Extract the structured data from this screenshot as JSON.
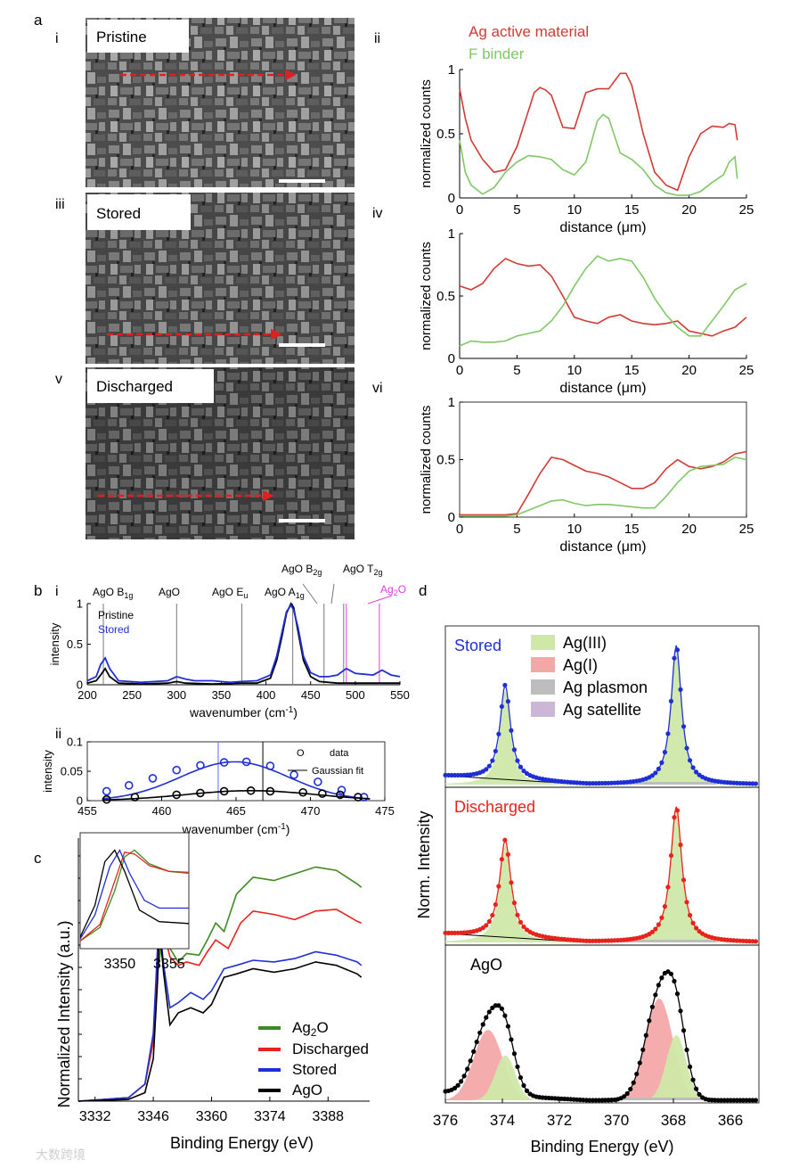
{
  "panel_labels": {
    "a": "a",
    "b": "b",
    "c": "c",
    "d": "d"
  },
  "sem": [
    {
      "roman": "i",
      "label": "Pristine"
    },
    {
      "roman": "iii",
      "label": "Stored"
    },
    {
      "roman": "v",
      "label": "Discharged"
    }
  ],
  "colors": {
    "ag": "#d23b34",
    "f": "#7fc865",
    "blue": "#1f2fd6",
    "red": "#e8231c",
    "green": "#3d8a1f",
    "black": "#000000",
    "magenta": "#e23ee6",
    "ag3": "#cfe8a8",
    "ag1": "#f3a8a8",
    "plasmon": "#bdbdbd",
    "satellite": "#cbb6d6"
  },
  "watermark": "大数跨境",
  "chart_data": [
    {
      "id": "a-ii",
      "roman": "ii",
      "type": "line",
      "legend": [
        "Ag active material",
        "F  binder"
      ],
      "xlabel": "distance (μm)",
      "ylabel": "normalized counts",
      "xlim": [
        0,
        25
      ],
      "ylim": [
        0,
        1
      ],
      "xticks": [
        0,
        5,
        10,
        15,
        20,
        25
      ],
      "yticks": [
        0,
        0.5,
        1
      ],
      "series": [
        {
          "name": "Ag active material",
          "x": [
            0,
            0.5,
            1,
            2,
            3,
            4,
            5,
            6,
            6.5,
            7,
            7.5,
            8,
            9,
            10,
            11,
            12,
            13,
            14,
            14.5,
            15,
            16,
            17,
            18,
            19,
            20,
            21,
            22,
            23,
            23.5,
            24,
            24.2
          ],
          "y": [
            0.85,
            0.62,
            0.45,
            0.3,
            0.2,
            0.22,
            0.4,
            0.68,
            0.82,
            0.86,
            0.84,
            0.8,
            0.55,
            0.54,
            0.82,
            0.85,
            0.85,
            0.97,
            0.97,
            0.88,
            0.5,
            0.2,
            0.1,
            0.06,
            0.32,
            0.5,
            0.56,
            0.55,
            0.58,
            0.57,
            0.45
          ]
        },
        {
          "name": "F  binder",
          "x": [
            0,
            0.5,
            1,
            2,
            3,
            4,
            5,
            6,
            7,
            8,
            9,
            10,
            11,
            12,
            12.5,
            13,
            14,
            15,
            16,
            17,
            18,
            19,
            20,
            21,
            22,
            23,
            23.5,
            24,
            24.2
          ],
          "y": [
            0.45,
            0.2,
            0.1,
            0.03,
            0.08,
            0.2,
            0.28,
            0.33,
            0.32,
            0.3,
            0.22,
            0.18,
            0.28,
            0.6,
            0.65,
            0.62,
            0.35,
            0.3,
            0.22,
            0.1,
            0.04,
            0.02,
            0.02,
            0.05,
            0.12,
            0.18,
            0.28,
            0.32,
            0.15
          ]
        }
      ]
    },
    {
      "id": "a-iv",
      "roman": "iv",
      "type": "line",
      "xlabel": "distance (μm)",
      "ylabel": "normalized counts",
      "xlim": [
        0,
        25
      ],
      "ylim": [
        0,
        1
      ],
      "xticks": [
        0,
        5,
        10,
        15,
        20,
        25
      ],
      "yticks": [
        0,
        0.5,
        1
      ],
      "series": [
        {
          "name": "Ag active material",
          "x": [
            0,
            1,
            2,
            3,
            4,
            5,
            6,
            7,
            8,
            9,
            10,
            11,
            12,
            13,
            14,
            15,
            16,
            17,
            18,
            19,
            20,
            21,
            22,
            23,
            24,
            25
          ],
          "y": [
            0.58,
            0.55,
            0.6,
            0.72,
            0.8,
            0.76,
            0.74,
            0.75,
            0.66,
            0.5,
            0.33,
            0.3,
            0.28,
            0.33,
            0.35,
            0.3,
            0.28,
            0.27,
            0.28,
            0.3,
            0.22,
            0.2,
            0.18,
            0.22,
            0.25,
            0.33
          ]
        },
        {
          "name": "F  binder",
          "x": [
            0,
            1,
            2,
            3,
            4,
            5,
            6,
            7,
            8,
            9,
            10,
            11,
            12,
            13,
            14,
            15,
            16,
            17,
            18,
            19,
            20,
            21,
            22,
            23,
            24,
            25
          ],
          "y": [
            0.1,
            0.14,
            0.13,
            0.13,
            0.14,
            0.18,
            0.2,
            0.22,
            0.3,
            0.42,
            0.58,
            0.72,
            0.82,
            0.78,
            0.8,
            0.78,
            0.65,
            0.48,
            0.35,
            0.25,
            0.18,
            0.18,
            0.3,
            0.42,
            0.55,
            0.6
          ]
        }
      ]
    },
    {
      "id": "a-vi",
      "roman": "vi",
      "type": "line",
      "xlabel": "distance (μm)",
      "ylabel": "normalized counts",
      "xlim": [
        0,
        25
      ],
      "ylim": [
        0,
        1
      ],
      "xticks": [
        0,
        5,
        10,
        15,
        20,
        25
      ],
      "yticks": [
        0,
        0.5,
        1
      ],
      "series": [
        {
          "name": "Ag active material",
          "x": [
            0,
            2,
            4,
            5,
            6,
            7,
            8,
            9,
            10,
            11,
            12,
            13,
            14,
            15,
            16,
            17,
            18,
            19,
            20,
            21,
            22,
            23,
            24,
            25
          ],
          "y": [
            0.02,
            0.02,
            0.02,
            0.03,
            0.2,
            0.38,
            0.52,
            0.5,
            0.45,
            0.4,
            0.38,
            0.35,
            0.3,
            0.25,
            0.25,
            0.3,
            0.42,
            0.5,
            0.44,
            0.42,
            0.44,
            0.48,
            0.55,
            0.57
          ]
        },
        {
          "name": "F  binder",
          "x": [
            0,
            2,
            4,
            5,
            6,
            7,
            8,
            9,
            10,
            11,
            12,
            13,
            14,
            15,
            16,
            17,
            18,
            19,
            20,
            21,
            22,
            23,
            24,
            25
          ],
          "y": [
            0.01,
            0.01,
            0.01,
            0.02,
            0.06,
            0.1,
            0.14,
            0.15,
            0.12,
            0.1,
            0.11,
            0.11,
            0.1,
            0.09,
            0.08,
            0.08,
            0.18,
            0.3,
            0.4,
            0.44,
            0.45,
            0.46,
            0.52,
            0.5
          ]
        }
      ]
    },
    {
      "id": "b-i",
      "roman": "i",
      "type": "line",
      "xlabel": "wavenumber (cm",
      "xlabel_sup": "-1",
      "xlabel_end": ")",
      "ylabel": "intensity",
      "xlim": [
        200,
        550
      ],
      "ylim": [
        0,
        1
      ],
      "xticks": [
        200,
        250,
        300,
        350,
        400,
        450,
        500,
        550
      ],
      "yticks": [
        0,
        0.5,
        1
      ],
      "legend": [
        "Pristine",
        "Stored"
      ],
      "bands": [
        {
          "label": "AgO B",
          "sub": "1g",
          "x": 218,
          "color": "#000000"
        },
        {
          "label": "AgO",
          "sub": "",
          "x": 300,
          "color": "#000000"
        },
        {
          "label": "AgO E",
          "sub": "u",
          "x": 373,
          "color": "#000000"
        },
        {
          "label": "AgO A",
          "sub": "1g",
          "x": 430,
          "color": "#000000"
        },
        {
          "label": "AgO B",
          "sub": "2g",
          "x": 465,
          "color": "#000000"
        },
        {
          "label": "AgO T",
          "sub": "2g",
          "x": 487,
          "color": "#000000"
        },
        {
          "label": "Ag",
          "sub": "2",
          "label_end": "O",
          "x": 490,
          "x2": 527,
          "color": "#e23ee6"
        }
      ],
      "series": [
        {
          "name": "Pristine",
          "x": [
            200,
            210,
            215,
            220,
            225,
            235,
            260,
            290,
            300,
            310,
            340,
            372,
            390,
            405,
            412,
            418,
            423,
            428,
            431,
            436,
            442,
            450,
            460,
            480,
            490,
            500,
            520,
            540,
            550
          ],
          "y": [
            0.02,
            0.05,
            0.12,
            0.2,
            0.1,
            0.02,
            0.01,
            0.02,
            0.04,
            0.02,
            0.01,
            0.02,
            0.02,
            0.08,
            0.3,
            0.6,
            0.88,
            1.0,
            0.95,
            0.65,
            0.3,
            0.1,
            0.04,
            0.02,
            0.02,
            0.02,
            0.02,
            0.02,
            0.02
          ]
        },
        {
          "name": "Stored",
          "x": [
            200,
            210,
            215,
            220,
            225,
            235,
            260,
            290,
            300,
            310,
            320,
            340,
            360,
            372,
            390,
            405,
            412,
            418,
            423,
            428,
            431,
            436,
            442,
            450,
            460,
            470,
            480,
            490,
            500,
            510,
            520,
            530,
            540,
            550
          ],
          "y": [
            0.05,
            0.1,
            0.25,
            0.33,
            0.2,
            0.05,
            0.03,
            0.05,
            0.1,
            0.07,
            0.05,
            0.05,
            0.03,
            0.04,
            0.05,
            0.12,
            0.35,
            0.65,
            0.9,
            0.98,
            0.92,
            0.7,
            0.35,
            0.15,
            0.1,
            0.1,
            0.12,
            0.2,
            0.14,
            0.13,
            0.12,
            0.18,
            0.12,
            0.1
          ]
        }
      ]
    },
    {
      "id": "b-ii",
      "roman": "ii",
      "type": "scatter",
      "xlabel": "wavenumber (cm",
      "xlabel_sup": "-1",
      "xlabel_end": ")",
      "ylabel": "intensity",
      "xlim": [
        455,
        475
      ],
      "ylim": [
        0,
        0.1
      ],
      "xticks": [
        455,
        460,
        465,
        470,
        475
      ],
      "yticks": [
        0,
        0.05,
        0.1
      ],
      "ytick_labels": [
        "0",
        "0.05",
        "0.1"
      ],
      "legend": [
        "data",
        "Gaussian fit"
      ],
      "legend_marker": "O",
      "vlines": [
        {
          "x": 463.8,
          "color": "#5b6ef0"
        },
        {
          "x": 466.8,
          "color": "#000000"
        }
      ],
      "series": [
        {
          "name": "Stored",
          "x": [
            456.3,
            457.8,
            459.4,
            461,
            462.6,
            464.2,
            465.7,
            467.3,
            468.9,
            470.5,
            472.1,
            473.6
          ],
          "y": [
            0.016,
            0.026,
            0.038,
            0.052,
            0.06,
            0.065,
            0.066,
            0.059,
            0.044,
            0.032,
            0.018,
            0.006
          ],
          "fit_center": 464.9,
          "fit_amp": 0.066,
          "fit_sigma": 5.4
        },
        {
          "name": "Pristine",
          "x": [
            456.3,
            458.2,
            461,
            462.6,
            464.2,
            466,
            467.3,
            469.5,
            470.8,
            472,
            473.2
          ],
          "y": [
            0.002,
            0.006,
            0.01,
            0.013,
            0.016,
            0.017,
            0.016,
            0.014,
            0.012,
            0.01,
            0.006
          ],
          "fit_center": 466,
          "fit_amp": 0.017,
          "fit_sigma": 6.5
        }
      ]
    },
    {
      "id": "c",
      "type": "line",
      "xlabel": "Binding Energy (eV)",
      "ylabel": "Normalized Intensity (a.u.)",
      "xlim": [
        3328,
        3398
      ],
      "ylim": [
        0,
        1.55
      ],
      "xticks": [
        3332,
        3346,
        3360,
        3374,
        3388
      ],
      "legend": [
        "Ag2O",
        "Discharged",
        "Stored",
        "AgO"
      ],
      "inset": {
        "xlim": [
          3346,
          3357
        ],
        "xticks": [
          3350,
          3355
        ]
      },
      "series": [
        {
          "name": "Ag2O",
          "x": [
            3328,
            3340,
            3344,
            3346,
            3347,
            3348.5,
            3350,
            3352,
            3354,
            3357,
            3359,
            3361,
            3363,
            3366,
            3370,
            3375,
            3380,
            3385,
            3390,
            3395,
            3396
          ],
          "y": [
            0.0,
            0.02,
            0.1,
            0.35,
            0.75,
            1.02,
            0.9,
            0.82,
            0.87,
            0.86,
            0.95,
            1.05,
            1.0,
            1.22,
            1.32,
            1.3,
            1.34,
            1.38,
            1.36,
            1.28,
            1.26
          ]
        },
        {
          "name": "Discharged",
          "x": [
            3328,
            3340,
            3344,
            3346,
            3347,
            3348,
            3349,
            3350,
            3352,
            3354,
            3357,
            3359,
            3361,
            3364,
            3367,
            3370,
            3375,
            3380,
            3385,
            3390,
            3395,
            3396
          ],
          "y": [
            0.0,
            0.02,
            0.1,
            0.35,
            0.8,
            1.02,
            0.95,
            0.85,
            0.8,
            0.82,
            0.8,
            0.88,
            0.95,
            0.9,
            1.05,
            1.12,
            1.1,
            1.07,
            1.12,
            1.13,
            1.06,
            1.05
          ]
        },
        {
          "name": "Stored",
          "x": [
            3328,
            3340,
            3344,
            3346,
            3347,
            3347.5,
            3348.5,
            3350,
            3352,
            3355,
            3358,
            3360,
            3363,
            3366,
            3370,
            3375,
            3380,
            3385,
            3390,
            3395,
            3396
          ],
          "y": [
            0.0,
            0.02,
            0.1,
            0.4,
            0.9,
            1.03,
            0.8,
            0.55,
            0.58,
            0.64,
            0.6,
            0.65,
            0.78,
            0.8,
            0.83,
            0.82,
            0.84,
            0.88,
            0.86,
            0.82,
            0.8
          ]
        },
        {
          "name": "AgO",
          "x": [
            3328,
            3340,
            3344,
            3346,
            3347,
            3347.5,
            3348.5,
            3350,
            3352,
            3355,
            3358,
            3360,
            3363,
            3366,
            3370,
            3375,
            3380,
            3385,
            3390,
            3395,
            3396
          ],
          "y": [
            0.0,
            0.01,
            0.05,
            0.25,
            0.7,
            1.02,
            0.75,
            0.45,
            0.52,
            0.55,
            0.52,
            0.57,
            0.73,
            0.75,
            0.78,
            0.76,
            0.78,
            0.82,
            0.8,
            0.75,
            0.73
          ]
        }
      ]
    },
    {
      "id": "d",
      "type": "xps",
      "xlabel": "Binding Energy (eV)",
      "ylabel": "Norm. Intensity",
      "xlim": [
        376,
        365
      ],
      "xticks": [
        376,
        374,
        372,
        370,
        368,
        366
      ],
      "legend": [
        "Ag(III)",
        "Ag(I)",
        "Ag plasmon",
        "Ag satellite"
      ],
      "panels": [
        {
          "name": "Stored",
          "color": "blue",
          "peaks": [
            {
              "c": 373.9,
              "h": 0.68,
              "w": 0.22,
              "cls": "ag3"
            },
            {
              "c": 367.9,
              "h": 1.0,
              "w": 0.22,
              "cls": "ag3"
            }
          ],
          "bg": 0.02
        },
        {
          "name": "Discharged",
          "color": "red",
          "peaks": [
            {
              "c": 373.9,
              "h": 0.72,
              "w": 0.24,
              "cls": "ag3"
            },
            {
              "c": 367.9,
              "h": 1.0,
              "w": 0.24,
              "cls": "ag3"
            }
          ],
          "bg": 0.02
        },
        {
          "name": "AgO",
          "color": "black",
          "peaks": [
            {
              "c": 374.5,
              "h": 0.52,
              "w": 0.5,
              "cls": "ag1"
            },
            {
              "c": 373.9,
              "h": 0.33,
              "w": 0.35,
              "cls": "ag3"
            },
            {
              "c": 368.5,
              "h": 0.75,
              "w": 0.48,
              "cls": "ag1"
            },
            {
              "c": 367.9,
              "h": 0.48,
              "w": 0.35,
              "cls": "ag3"
            }
          ],
          "bg": 0.0
        }
      ]
    }
  ]
}
